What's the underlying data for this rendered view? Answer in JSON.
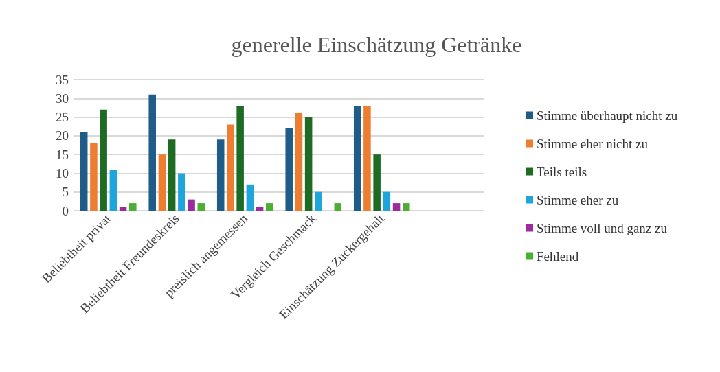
{
  "chart_data": {
    "type": "bar",
    "title": "generelle Einschätzung Getränke",
    "categories": [
      "Beliebtheit privat",
      "Beliebtheit Freundeskreis",
      "preislich angemessen",
      "Vergleich Geschmack",
      "Einschätzung Zuckergehalt",
      null
    ],
    "series": [
      {
        "name": "Stimme überhaupt nicht zu",
        "color": "#1f5c87",
        "values": [
          21,
          31,
          19,
          22,
          28,
          null
        ]
      },
      {
        "name": "Stimme eher nicht zu",
        "color": "#ed7d31",
        "values": [
          18,
          15,
          23,
          26,
          28,
          null
        ]
      },
      {
        "name": "Teils teils",
        "color": "#1e6b24",
        "values": [
          27,
          19,
          28,
          25,
          15,
          null
        ]
      },
      {
        "name": "Stimme eher zu",
        "color": "#1ea5dc",
        "values": [
          11,
          10,
          7,
          5,
          5,
          null
        ]
      },
      {
        "name": "Stimme voll und ganz zu",
        "color": "#9e2aa0",
        "values": [
          1,
          3,
          1,
          0,
          2,
          null
        ]
      },
      {
        "name": "Fehlend",
        "color": "#4caf32",
        "values": [
          2,
          2,
          2,
          2,
          2,
          null
        ]
      }
    ],
    "ylim": [
      0,
      35
    ],
    "yticks": [
      0,
      5,
      10,
      15,
      20,
      25,
      30,
      35
    ],
    "grid": "y",
    "legend": "right"
  }
}
